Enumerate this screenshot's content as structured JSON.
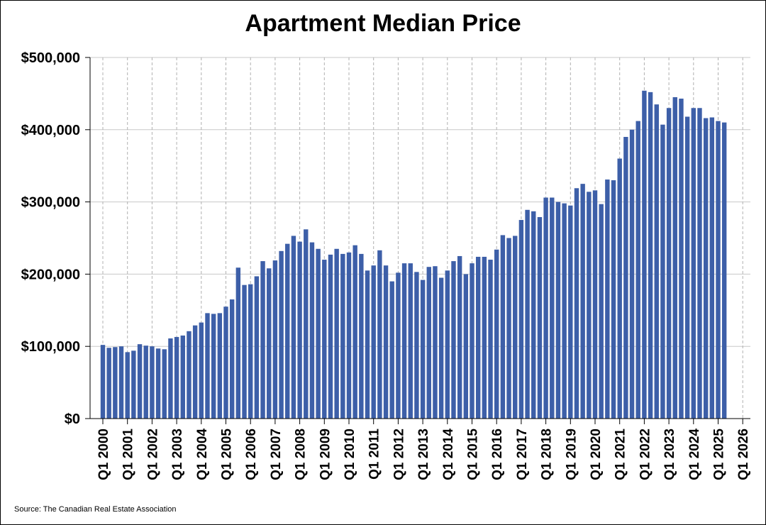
{
  "chart_data": {
    "type": "bar",
    "title": "Apartment Median Price",
    "source": "Source: The Canadian Real Estate Association",
    "bar_color": "#3d5fa8",
    "y_grid_color": "#c8c8c8",
    "x_grid_color": "#b0b0b0",
    "grid": true,
    "ylim": [
      0,
      500000
    ],
    "y_ticks": [
      0,
      100000,
      200000,
      300000,
      400000,
      500000
    ],
    "y_tick_labels": [
      "$0",
      "$100,000",
      "$200,000",
      "$300,000",
      "$400,000",
      "$500,000"
    ],
    "x_ticks": [
      "Q1 2000",
      "Q1 2001",
      "Q1 2002",
      "Q1 2003",
      "Q1 2004",
      "Q1 2005",
      "Q1 2006",
      "Q1 2007",
      "Q1 2008",
      "Q1 2009",
      "Q1 2010",
      "Q1 2011",
      "Q1 2012",
      "Q1 2013",
      "Q1 2014",
      "Q1 2015",
      "Q1 2016",
      "Q1 2017",
      "Q1 2018",
      "Q1 2019",
      "Q1 2020",
      "Q1 2021",
      "Q1 2022",
      "Q1 2023",
      "Q1 2024",
      "Q1 2025",
      "Q1 2026"
    ],
    "start_period": "Q1 2000",
    "frequency": "quarterly",
    "values": [
      102000,
      98000,
      99000,
      100000,
      92000,
      94000,
      103000,
      101000,
      100000,
      97000,
      96000,
      111000,
      113000,
      115000,
      121000,
      129000,
      133000,
      146000,
      145000,
      146000,
      155000,
      165000,
      209000,
      185000,
      186000,
      197000,
      218000,
      208000,
      219000,
      232000,
      242000,
      253000,
      245000,
      262000,
      244000,
      235000,
      220000,
      227000,
      235000,
      228000,
      230000,
      240000,
      228000,
      205000,
      212000,
      233000,
      212000,
      190000,
      202000,
      215000,
      215000,
      203000,
      192000,
      210000,
      211000,
      195000,
      205000,
      218000,
      225000,
      200000,
      215000,
      224000,
      224000,
      220000,
      234000,
      254000,
      250000,
      253000,
      275000,
      289000,
      287000,
      279000,
      306000,
      306000,
      300000,
      298000,
      295000,
      319000,
      325000,
      314000,
      316000,
      297000,
      331000,
      330000,
      360000,
      390000,
      400000,
      412000,
      454000,
      452000,
      435000,
      407000,
      430000,
      445000,
      443000,
      418000,
      430000,
      430000,
      416000,
      417000,
      412000,
      410000
    ]
  }
}
